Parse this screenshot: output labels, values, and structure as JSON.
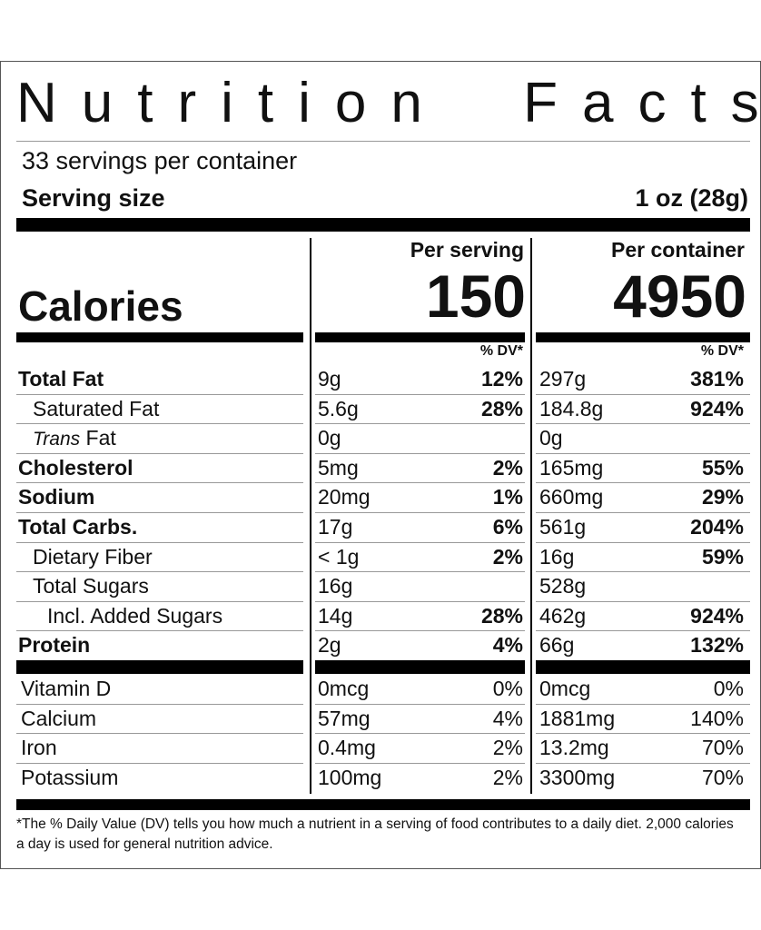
{
  "title": "Nutrition Facts",
  "servings": "33 servings per container",
  "serving_size": {
    "label": "Serving size",
    "value": "1 oz (28g)"
  },
  "calories_label": "Calories",
  "columns": [
    {
      "header": "Per serving",
      "calories": "150",
      "dv_header": "% DV*"
    },
    {
      "header": "Per container",
      "calories": "4950",
      "dv_header": "% DV*"
    }
  ],
  "nutrients": [
    {
      "name": "Total Fat",
      "per_serving": [
        "9g",
        "12%"
      ],
      "per_container": [
        "297g",
        "381%"
      ]
    },
    {
      "name": "Saturated Fat",
      "per_serving": [
        "5.6g",
        "28%"
      ],
      "per_container": [
        "184.8g",
        "924%"
      ]
    },
    {
      "name_italic": "Trans",
      "name": "Fat",
      "per_serving": [
        "0g"
      ],
      "per_container": [
        "0g"
      ]
    },
    {
      "name": "Cholesterol",
      "per_serving": [
        "5mg",
        "2%"
      ],
      "per_container": [
        "165mg",
        "55%"
      ]
    },
    {
      "name": "Sodium",
      "per_serving": [
        "20mg",
        "1%"
      ],
      "per_container": [
        "660mg",
        "29%"
      ]
    },
    {
      "name": "Total Carbs.",
      "per_serving": [
        "17g",
        "6%"
      ],
      "per_container": [
        "561g",
        "204%"
      ]
    },
    {
      "name": "Dietary Fiber",
      "per_serving": [
        "< 1g",
        "2%"
      ],
      "per_container": [
        "16g",
        "59%"
      ]
    },
    {
      "name": "Total Sugars",
      "per_serving": [
        "16g"
      ],
      "per_container": [
        "528g"
      ]
    },
    {
      "name": "Incl. Added Sugars",
      "per_serving": [
        "14g",
        "28%"
      ],
      "per_container": [
        "462g",
        "924%"
      ]
    },
    {
      "name": "Protein",
      "per_serving": [
        "2g",
        "4%"
      ],
      "per_container": [
        "66g",
        "132%"
      ]
    }
  ],
  "vitamins": [
    {
      "name": "Vitamin D",
      "per_serving": [
        "0mcg",
        "0%"
      ],
      "per_container": [
        "0mcg",
        "0%"
      ]
    },
    {
      "name": "Calcium",
      "per_serving": [
        "57mg",
        "4%"
      ],
      "per_container": [
        "1881mg",
        "140%"
      ]
    },
    {
      "name": "Iron",
      "per_serving": [
        "0.4mg",
        "2%"
      ],
      "per_container": [
        "13.2mg",
        "70%"
      ]
    },
    {
      "name": "Potassium",
      "per_serving": [
        "100mg",
        "2%"
      ],
      "per_container": [
        "3300mg",
        "70%"
      ]
    }
  ],
  "footnote": "*The % Daily Value (DV) tells you how much a nutrient in a serving of food contributes to a daily diet. 2,000 calories a day is used for general nutrition advice."
}
